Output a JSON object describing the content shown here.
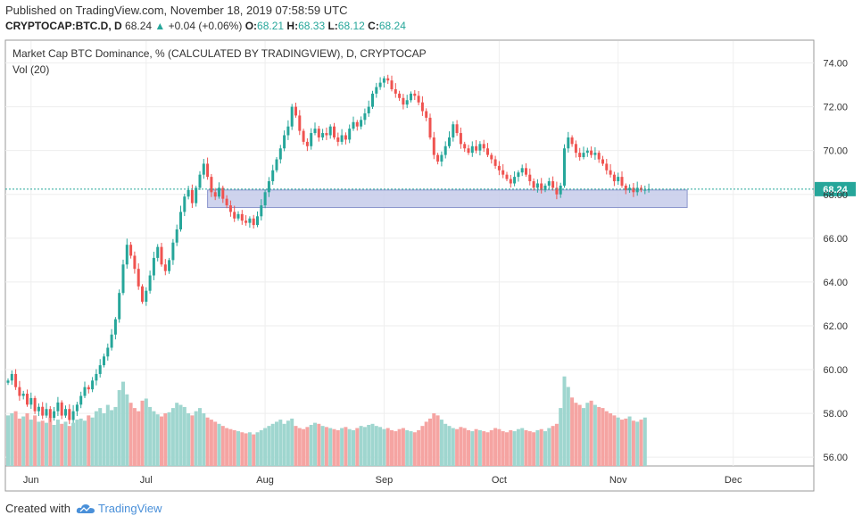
{
  "header": {
    "published": "Published on TradingView.com, November 18, 2019 07:58:59 UTC",
    "symbol": "CRYPTOCAP:BTC.D, D",
    "last": "68.24",
    "arrow": "▲",
    "change": "+0.04 (+0.06%)",
    "o_label": "O:",
    "o": "68.21",
    "h_label": "H:",
    "h": "68.33",
    "l_label": "L:",
    "l": "68.12",
    "c_label": "C:",
    "c": "68.24"
  },
  "footer": {
    "created_with": "Created with",
    "brand": "TradingView"
  },
  "colors": {
    "up": "#26a69a",
    "down": "#ef5350",
    "vol_up": "#9fd6cf",
    "vol_down": "#f5a4a2",
    "zone_fill": "#c5cbea",
    "zone_stroke": "#8b95cc",
    "last_tag": "#26a69a",
    "grid": "#eeeeee"
  },
  "chart_data": {
    "type": "candlestick",
    "title": "Market Cap BTC Dominance, % (CALCULATED BY TRADINGVIEW), D, CRYPTOCAP",
    "indicator": "Vol (20)",
    "y_ticks": [
      "74.00",
      "72.00",
      "70.00",
      "68.00",
      "66.00",
      "64.00",
      "62.00",
      "60.00",
      "58.00",
      "56.00"
    ],
    "ylim": [
      55.6,
      75.0
    ],
    "x_ticks": [
      {
        "label": "Jun",
        "index": 6
      },
      {
        "label": "Jul",
        "index": 36
      },
      {
        "label": "Aug",
        "index": 67
      },
      {
        "label": "Sep",
        "index": 98
      },
      {
        "label": "Oct",
        "index": 128
      },
      {
        "label": "Nov",
        "index": 159
      },
      {
        "label": "Dec",
        "index": 189
      }
    ],
    "start_date": "2019-05-26",
    "last_price": "68.24",
    "last_value": 68.24,
    "zone": {
      "x_start": 52,
      "x_end": 177,
      "y_low": 67.4,
      "y_high": 68.2
    },
    "closes": [
      59.5,
      59.8,
      59.2,
      58.8,
      58.9,
      58.4,
      58.7,
      58.1,
      58.3,
      57.9,
      58.2,
      57.8,
      58.1,
      58.5,
      57.9,
      58.2,
      57.7,
      58.1,
      58.4,
      58.8,
      59.2,
      59.1,
      59.5,
      59.8,
      60.2,
      60.6,
      61.0,
      61.6,
      62.3,
      63.5,
      64.8,
      65.7,
      65.2,
      64.6,
      63.8,
      63.1,
      63.6,
      64.3,
      65.1,
      65.6,
      64.8,
      64.5,
      65.0,
      65.8,
      66.4,
      67.2,
      67.9,
      68.2,
      67.6,
      68.3,
      68.9,
      69.4,
      68.8,
      68.1,
      67.9,
      68.3,
      67.8,
      67.5,
      67.2,
      66.9,
      67.1,
      66.8,
      66.7,
      66.9,
      66.6,
      67.0,
      67.5,
      68.1,
      68.6,
      69.1,
      69.6,
      70.1,
      70.7,
      71.1,
      72.0,
      71.6,
      70.9,
      70.4,
      70.2,
      70.8,
      71.0,
      70.6,
      70.8,
      70.7,
      71.1,
      70.6,
      70.4,
      70.7,
      70.5,
      71.0,
      71.3,
      71.1,
      71.4,
      71.7,
      72.0,
      72.6,
      72.9,
      73.1,
      73.3,
      73.2,
      72.8,
      72.6,
      72.4,
      72.1,
      72.3,
      72.6,
      72.5,
      72.2,
      71.8,
      71.5,
      70.6,
      69.8,
      69.5,
      69.8,
      70.2,
      70.6,
      71.2,
      70.8,
      70.3,
      70.1,
      69.9,
      70.2,
      70.0,
      70.3,
      70.1,
      69.8,
      69.6,
      69.3,
      69.1,
      68.9,
      68.7,
      68.5,
      68.8,
      69.0,
      69.2,
      68.9,
      68.6,
      68.3,
      68.5,
      68.2,
      68.4,
      68.6,
      68.3,
      68.0,
      68.4,
      70.1,
      70.6,
      70.3,
      69.9,
      69.7,
      69.9,
      70.0,
      69.8,
      69.9,
      69.6,
      69.4,
      69.1,
      68.9,
      68.6,
      68.8,
      68.4,
      68.2,
      68.3,
      68.1,
      68.3,
      68.2,
      68.21,
      68.24
    ],
    "volumes": [
      0.48,
      0.5,
      0.52,
      0.45,
      0.47,
      0.5,
      0.44,
      0.48,
      0.42,
      0.43,
      0.41,
      0.46,
      0.39,
      0.44,
      0.4,
      0.42,
      0.38,
      0.41,
      0.44,
      0.45,
      0.43,
      0.48,
      0.46,
      0.52,
      0.55,
      0.5,
      0.58,
      0.53,
      0.56,
      0.72,
      0.8,
      0.68,
      0.6,
      0.55,
      0.52,
      0.62,
      0.64,
      0.56,
      0.52,
      0.49,
      0.47,
      0.5,
      0.51,
      0.55,
      0.6,
      0.58,
      0.56,
      0.5,
      0.48,
      0.52,
      0.55,
      0.5,
      0.46,
      0.44,
      0.42,
      0.4,
      0.38,
      0.36,
      0.35,
      0.34,
      0.33,
      0.32,
      0.31,
      0.32,
      0.3,
      0.32,
      0.34,
      0.36,
      0.38,
      0.4,
      0.42,
      0.44,
      0.4,
      0.43,
      0.45,
      0.38,
      0.36,
      0.35,
      0.37,
      0.39,
      0.41,
      0.4,
      0.38,
      0.37,
      0.36,
      0.35,
      0.34,
      0.36,
      0.37,
      0.35,
      0.34,
      0.36,
      0.38,
      0.37,
      0.39,
      0.4,
      0.38,
      0.37,
      0.35,
      0.36,
      0.34,
      0.33,
      0.35,
      0.36,
      0.34,
      0.33,
      0.32,
      0.34,
      0.38,
      0.42,
      0.45,
      0.5,
      0.48,
      0.44,
      0.4,
      0.38,
      0.36,
      0.35,
      0.37,
      0.36,
      0.34,
      0.33,
      0.35,
      0.34,
      0.33,
      0.32,
      0.34,
      0.36,
      0.35,
      0.33,
      0.32,
      0.34,
      0.33,
      0.35,
      0.36,
      0.34,
      0.33,
      0.32,
      0.34,
      0.35,
      0.33,
      0.36,
      0.38,
      0.4,
      0.55,
      0.85,
      0.75,
      0.65,
      0.6,
      0.58,
      0.55,
      0.6,
      0.62,
      0.58,
      0.56,
      0.55,
      0.52,
      0.5,
      0.48,
      0.46,
      0.44,
      0.45,
      0.47,
      0.43,
      0.42,
      0.44,
      0.46
    ]
  }
}
